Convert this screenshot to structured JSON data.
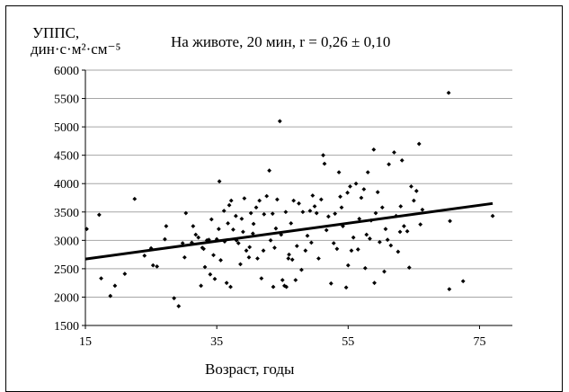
{
  "chart_data": {
    "type": "scatter",
    "title": "На животе, 20 мин, r = 0,26 ± 0,10",
    "ylabel_line1": "УППС,",
    "ylabel_line2": "дин·с·м²·см⁻⁵",
    "xlabel": "Возраст, годы",
    "xlim": [
      15,
      80
    ],
    "ylim": [
      1500,
      6000
    ],
    "x_ticks": [
      15,
      35,
      55,
      75
    ],
    "y_ticks": [
      1500,
      2000,
      2500,
      3000,
      3500,
      4000,
      4500,
      5000,
      5500,
      6000
    ],
    "grid": {
      "horizontal": true,
      "vertical": false
    },
    "regression_line": {
      "x": [
        15,
        77
      ],
      "y": [
        2670,
        3650
      ]
    },
    "points": [
      [
        15.2,
        3200
      ],
      [
        17.1,
        3450
      ],
      [
        17.4,
        2330
      ],
      [
        18.8,
        2020
      ],
      [
        19.5,
        2200
      ],
      [
        21.0,
        2410
      ],
      [
        22.5,
        3730
      ],
      [
        24.0,
        2730
      ],
      [
        25.0,
        2860
      ],
      [
        25.3,
        2560
      ],
      [
        25.9,
        2540
      ],
      [
        27.3,
        3250
      ],
      [
        27.1,
        3020
      ],
      [
        28.5,
        1980
      ],
      [
        29.2,
        1840
      ],
      [
        30.3,
        3480
      ],
      [
        29.8,
        2950
      ],
      [
        30.1,
        2700
      ],
      [
        31.2,
        2960
      ],
      [
        31.4,
        3250
      ],
      [
        32.2,
        3050
      ],
      [
        32.6,
        2200
      ],
      [
        32.8,
        2870
      ],
      [
        33.2,
        2530
      ],
      [
        33.5,
        3000
      ],
      [
        33.8,
        3010
      ],
      [
        34.0,
        2400
      ],
      [
        34.2,
        3370
      ],
      [
        34.5,
        2740
      ],
      [
        34.7,
        2320
      ],
      [
        35.0,
        3020
      ],
      [
        35.4,
        4040
      ],
      [
        35.3,
        3200
      ],
      [
        35.6,
        2650
      ],
      [
        36.1,
        3520
      ],
      [
        36.2,
        2980
      ],
      [
        36.5,
        2250
      ],
      [
        36.9,
        3620
      ],
      [
        37.1,
        2180
      ],
      [
        37.2,
        3700
      ],
      [
        37.5,
        3190
      ],
      [
        37.9,
        3430
      ],
      [
        38.3,
        2950
      ],
      [
        38.6,
        2580
      ],
      [
        38.8,
        3380
      ],
      [
        39.0,
        3150
      ],
      [
        39.2,
        3740
      ],
      [
        39.5,
        2820
      ],
      [
        39.9,
        2700
      ],
      [
        40.2,
        3480
      ],
      [
        40.5,
        3120
      ],
      [
        40.6,
        3290
      ],
      [
        41.0,
        3580
      ],
      [
        41.5,
        3700
      ],
      [
        41.8,
        2330
      ],
      [
        42.1,
        2820
      ],
      [
        42.2,
        3460
      ],
      [
        42.6,
        3780
      ],
      [
        43.0,
        4230
      ],
      [
        43.2,
        3000
      ],
      [
        43.5,
        3470
      ],
      [
        43.6,
        2180
      ],
      [
        44.0,
        3210
      ],
      [
        44.2,
        3720
      ],
      [
        44.6,
        5100
      ],
      [
        44.8,
        3100
      ],
      [
        45.0,
        2300
      ],
      [
        45.3,
        2200
      ],
      [
        45.5,
        3500
      ],
      [
        45.6,
        2180
      ],
      [
        45.9,
        2680
      ],
      [
        46.3,
        3300
      ],
      [
        46.5,
        2660
      ],
      [
        46.7,
        3700
      ],
      [
        47.2,
        2900
      ],
      [
        47.5,
        3650
      ],
      [
        47.9,
        2480
      ],
      [
        48.1,
        3500
      ],
      [
        48.5,
        2820
      ],
      [
        48.8,
        3080
      ],
      [
        49.2,
        3520
      ],
      [
        49.4,
        2960
      ],
      [
        49.6,
        3790
      ],
      [
        50.2,
        3480
      ],
      [
        50.5,
        2680
      ],
      [
        50.9,
        3720
      ],
      [
        51.2,
        4500
      ],
      [
        51.4,
        4350
      ],
      [
        51.7,
        3180
      ],
      [
        52.0,
        3420
      ],
      [
        52.4,
        2240
      ],
      [
        52.8,
        2950
      ],
      [
        53.0,
        3470
      ],
      [
        53.3,
        2850
      ],
      [
        53.6,
        4200
      ],
      [
        54.0,
        3580
      ],
      [
        54.2,
        3250
      ],
      [
        54.7,
        2170
      ],
      [
        54.9,
        3840
      ],
      [
        55.3,
        3950
      ],
      [
        55.5,
        2820
      ],
      [
        55.8,
        3050
      ],
      [
        56.2,
        4000
      ],
      [
        56.5,
        2840
      ],
      [
        56.7,
        3380
      ],
      [
        57.0,
        3750
      ],
      [
        57.4,
        3900
      ],
      [
        57.6,
        2510
      ],
      [
        58.0,
        4200
      ],
      [
        58.3,
        3030
      ],
      [
        58.5,
        3350
      ],
      [
        58.9,
        4600
      ],
      [
        59.2,
        3480
      ],
      [
        59.5,
        3850
      ],
      [
        59.8,
        2970
      ],
      [
        60.2,
        3580
      ],
      [
        60.5,
        2450
      ],
      [
        60.7,
        3200
      ],
      [
        61.0,
        3010
      ],
      [
        61.2,
        4340
      ],
      [
        61.5,
        2910
      ],
      [
        62.0,
        4550
      ],
      [
        62.3,
        3430
      ],
      [
        62.6,
        2800
      ],
      [
        62.9,
        3150
      ],
      [
        63.2,
        4410
      ],
      [
        63.5,
        3250
      ],
      [
        64.0,
        3160
      ],
      [
        64.3,
        2520
      ],
      [
        64.6,
        3950
      ],
      [
        65.0,
        3700
      ],
      [
        65.4,
        3870
      ],
      [
        65.8,
        4700
      ],
      [
        66.0,
        3280
      ],
      [
        66.3,
        3540
      ],
      [
        70.3,
        5600
      ],
      [
        70.4,
        2140
      ],
      [
        70.5,
        3340
      ],
      [
        72.5,
        2280
      ],
      [
        77.0,
        3430
      ],
      [
        55.0,
        2560
      ],
      [
        53.8,
        3770
      ],
      [
        49.9,
        3600
      ],
      [
        46.0,
        2750
      ],
      [
        41.2,
        2680
      ],
      [
        38.0,
        3000
      ],
      [
        36.7,
        3300
      ],
      [
        33.0,
        2850
      ],
      [
        31.8,
        3100
      ],
      [
        59.0,
        2250
      ],
      [
        63.0,
        3600
      ],
      [
        57.8,
        3100
      ],
      [
        47.0,
        2300
      ],
      [
        43.8,
        2870
      ],
      [
        40.0,
        2880
      ]
    ]
  }
}
